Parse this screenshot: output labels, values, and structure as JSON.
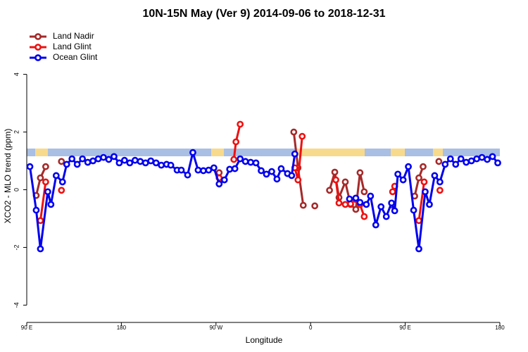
{
  "chart_data": {
    "type": "line",
    "title": "10N-15N May (Ver 9)   2014-09-06 to 2018-12-31",
    "x_label": "Longitude",
    "y_label": "XCO2 - MLO trend (ppm)",
    "xlim": [
      88,
      540
    ],
    "ylim": [
      -4.6,
      5.6
    ],
    "xticks": [
      {
        "value": 90,
        "label": "90 E"
      },
      {
        "value": 180,
        "label": "180"
      },
      {
        "value": 270,
        "label": "90 W"
      },
      {
        "value": 360,
        "label": "0"
      },
      {
        "value": 450,
        "label": "90 E"
      },
      {
        "value": 540,
        "label": "180"
      }
    ],
    "yticks": [
      -4,
      -2,
      0,
      2,
      4
    ],
    "legend": "top-left",
    "series": [
      {
        "name": "Land Nadir",
        "color": "#a52a2a",
        "x": [
          99,
          103,
          108,
          null,
          123,
          null,
          273,
          null,
          344,
          348,
          353,
          null,
          364,
          null,
          378,
          383,
          387,
          393,
          398,
          403,
          407,
          411,
          null,
          438,
          null,
          459,
          463,
          467,
          null,
          482
        ],
        "values": [
          -0.2,
          0.41,
          0.8,
          null,
          0.98,
          null,
          0.59,
          null,
          2.0,
          0.76,
          -0.54,
          null,
          -0.56,
          null,
          -0.02,
          0.61,
          -0.27,
          0.27,
          -0.51,
          -0.68,
          0.59,
          -0.07,
          null,
          -0.54,
          null,
          -0.22,
          0.41,
          0.8,
          null,
          0.98
        ]
      },
      {
        "name": "Land Glint",
        "color": "#ee1111",
        "x": [
          103,
          108,
          null,
          123,
          null,
          273,
          null,
          287,
          289,
          293,
          null,
          345,
          348,
          352,
          null,
          384,
          387,
          393,
          398,
          403,
          407,
          411,
          null,
          438,
          440,
          null,
          463,
          468,
          null,
          483
        ],
        "values": [
          -1.07,
          0.27,
          null,
          -0.02,
          null,
          0.41,
          null,
          1.05,
          1.66,
          2.27,
          null,
          0.76,
          0.34,
          1.85,
          null,
          0.34,
          -0.46,
          -0.51,
          -0.49,
          -0.34,
          -0.51,
          -0.93,
          null,
          -0.07,
          0.12,
          null,
          -1.07,
          0.27,
          null,
          -0.02
        ]
      },
      {
        "name": "Ocean Glint",
        "color": "#0000ee",
        "x": [
          93,
          99,
          103,
          110,
          113,
          118,
          124,
          128,
          133,
          138,
          143,
          148,
          153,
          158,
          163,
          168,
          173,
          178,
          183,
          188,
          193,
          198,
          203,
          208,
          213,
          218,
          223,
          227,
          233,
          237,
          243,
          248,
          253,
          258,
          263,
          268,
          273,
          278,
          283,
          288,
          293,
          298,
          303,
          308,
          313,
          318,
          323,
          328,
          332,
          338,
          342,
          345,
          null,
          397,
          403,
          407,
          413,
          417,
          422,
          427,
          432,
          437,
          440,
          443,
          448,
          453,
          458,
          463,
          469,
          473,
          478,
          483,
          488,
          493,
          498,
          503,
          508,
          513,
          518,
          523,
          528,
          533,
          538
        ],
        "values": [
          0.8,
          -0.71,
          -2.05,
          -0.07,
          -0.51,
          0.49,
          0.27,
          0.88,
          1.07,
          0.88,
          1.07,
          0.95,
          1.0,
          1.07,
          1.12,
          1.05,
          1.15,
          0.93,
          1.02,
          0.93,
          1.02,
          0.98,
          0.93,
          1.0,
          0.93,
          0.85,
          0.88,
          0.85,
          0.68,
          0.68,
          0.51,
          1.29,
          0.68,
          0.66,
          0.68,
          0.76,
          0.2,
          0.34,
          0.71,
          0.73,
          1.07,
          0.98,
          0.95,
          0.93,
          0.66,
          0.54,
          0.63,
          0.37,
          0.73,
          0.56,
          0.49,
          1.24,
          null,
          -0.32,
          -0.29,
          -0.44,
          -0.51,
          -0.22,
          -1.22,
          -0.59,
          -0.93,
          -0.46,
          -0.73,
          0.54,
          0.34,
          0.8,
          -0.71,
          -2.05,
          -0.07,
          -0.51,
          0.49,
          0.27,
          0.88,
          1.07,
          0.88,
          1.07,
          0.95,
          1.0,
          1.07,
          1.12,
          1.05,
          1.15,
          0.93
        ]
      }
    ]
  }
}
